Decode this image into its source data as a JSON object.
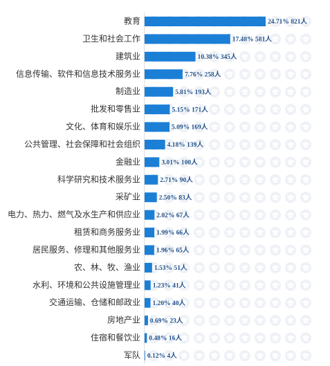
{
  "chart_data": {
    "type": "bar",
    "orientation": "horizontal",
    "color": "#1b7fd6",
    "categories": [
      "教育",
      "卫生和社会工作",
      "建筑业",
      "信息传输、软件和信息技术服务业",
      "制造业",
      "批发和零售业",
      "文化、体育和娱乐业",
      "公共管理、社会保障和社会组织",
      "金融业",
      "科学研究和技术服务业",
      "采矿业",
      "电力、热力、燃气及水生产和供应业",
      "租赁和商务服务业",
      "居民服务、修理和其他服务业",
      "农、林、牧、渔业",
      "水利、环境和公共设施管理业",
      "交通运输、仓储和邮政业",
      "房地产业",
      "住宿和餐饮业",
      "军队"
    ],
    "values": [
      24.71,
      17.48,
      10.38,
      7.76,
      5.81,
      5.15,
      5.09,
      4.18,
      3.01,
      2.71,
      2.5,
      2.02,
      1.99,
      1.96,
      1.53,
      1.23,
      1.2,
      0.69,
      0.48,
      0.12
    ],
    "counts": [
      821,
      581,
      345,
      258,
      193,
      171,
      169,
      139,
      100,
      90,
      83,
      67,
      66,
      65,
      51,
      41,
      40,
      23,
      16,
      4
    ],
    "value_labels": [
      "24.71% 821人",
      "17.48% 581人",
      "10.38% 345人",
      "7.76% 258人",
      "5.81% 193人",
      "5.15% 171人",
      "5.09% 169人",
      "4.18% 139人",
      "3.01% 100人",
      "2.71% 90人",
      "2.50% 83人",
      "2.02% 67人",
      "1.99% 66人",
      "1.96% 65人",
      "1.53% 51人",
      "1.23% 41人",
      "1.20% 40人",
      "0.69% 23人",
      "0.48% 16人",
      "0.12% 4人"
    ]
  }
}
